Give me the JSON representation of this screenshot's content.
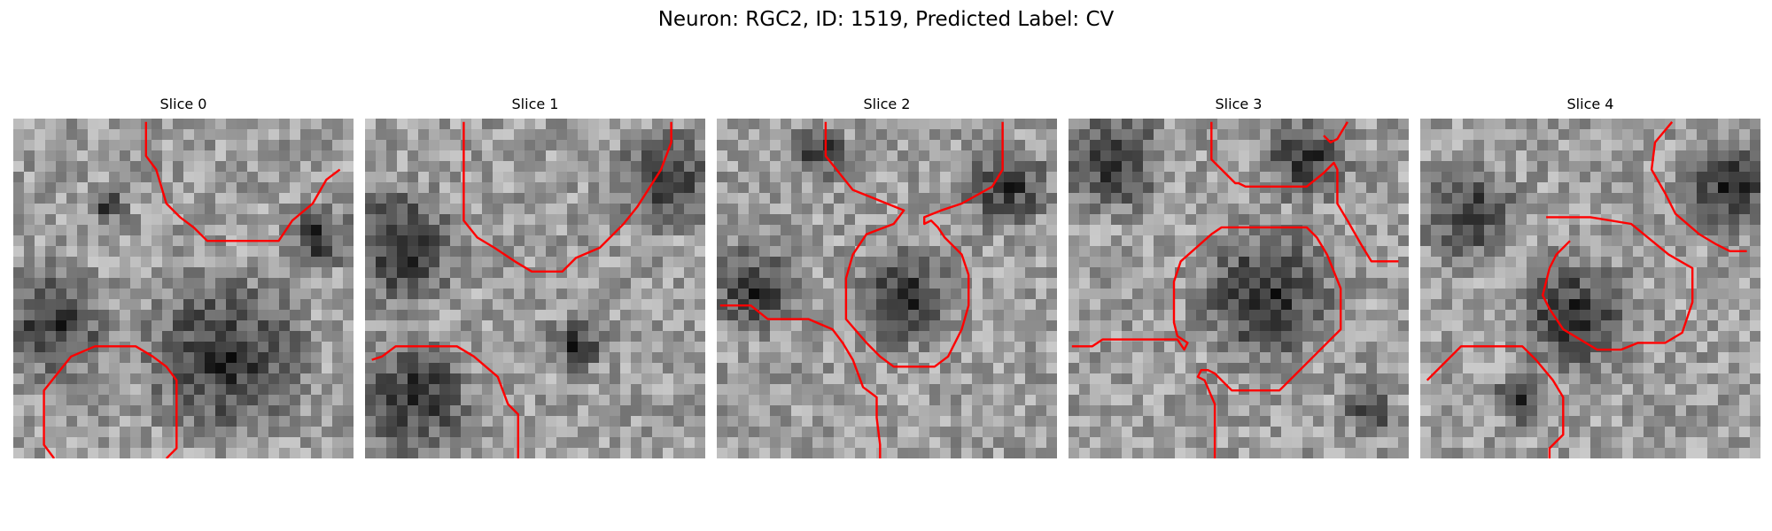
{
  "figure": {
    "suptitle": "Neuron: RGC2, ID: 1519, Predicted Label: CV"
  },
  "panels": [
    {
      "title": "Slice 0"
    },
    {
      "title": "Slice 1"
    },
    {
      "title": "Slice 2"
    },
    {
      "title": "Slice 3"
    },
    {
      "title": "Slice 4"
    }
  ],
  "colors": {
    "contour": "#ff0000",
    "background": "#ffffff"
  }
}
